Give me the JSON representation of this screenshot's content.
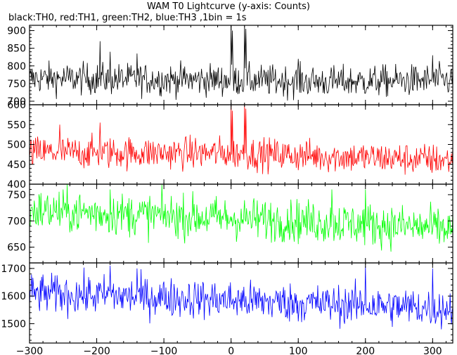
{
  "title": "WAM T0 Lightcurve (y-axis: Counts)",
  "subtitle": "black:TH0, red:TH1, green:TH2, blue:TH3 ,1bin = 1s",
  "chart_data": {
    "type": "line",
    "title": "WAM T0 Lightcurve (y-axis: Counts)",
    "subtitle": "black:TH0, red:TH1, green:TH2, blue:TH3 ,1bin = 1s",
    "xlim": [
      -300,
      330
    ],
    "xticks": [
      -300,
      -200,
      -100,
      0,
      100,
      200,
      300
    ],
    "x_tick_labels": [
      "−300",
      "−200",
      "−100",
      "0",
      "100",
      "200",
      "300"
    ],
    "grid": false,
    "panels": [
      {
        "name": "TH0",
        "color": "#000000",
        "ylim": [
          690,
          915
        ],
        "yticks": [
          700,
          750,
          800,
          850,
          900
        ],
        "baseline": [
          [
            -300,
            765
          ],
          [
            0,
            760
          ],
          [
            150,
            755
          ],
          [
            330,
            760
          ]
        ],
        "noise": 22,
        "spikes": [
          [
            -195,
            870
          ],
          [
            -180,
            840
          ],
          [
            -140,
            835
          ],
          [
            0,
            915
          ],
          [
            2,
            900
          ],
          [
            20,
            915
          ],
          [
            22,
            905
          ],
          [
            100,
            820
          ],
          [
            300,
            830
          ]
        ]
      },
      {
        "name": "TH1",
        "color": "#ff0000",
        "ylim": [
          400,
          600
        ],
        "yticks": [
          400,
          450,
          500,
          550,
          600
        ],
        "baseline": [
          [
            -300,
            480
          ],
          [
            0,
            478
          ],
          [
            150,
            470
          ],
          [
            330,
            460
          ]
        ],
        "noise": 20,
        "spikes": [
          [
            -255,
            550
          ],
          [
            -195,
            555
          ],
          [
            0,
            600
          ],
          [
            2,
            585
          ],
          [
            20,
            600
          ],
          [
            22,
            590
          ]
        ]
      },
      {
        "name": "TH2",
        "color": "#00ff00",
        "ylim": [
          620,
          770
        ],
        "yticks": [
          650,
          700,
          750
        ],
        "baseline": [
          [
            -300,
            720
          ],
          [
            -100,
            710
          ],
          [
            100,
            700
          ],
          [
            330,
            685
          ]
        ],
        "noise": 20,
        "spikes": [
          [
            -250,
            760
          ],
          [
            -180,
            760
          ],
          [
            150,
            760
          ],
          [
            200,
            760
          ]
        ]
      },
      {
        "name": "TH3",
        "color": "#0000ff",
        "ylim": [
          1430,
          1720
        ],
        "yticks": [
          1500,
          1600,
          1700
        ],
        "baseline": [
          [
            -300,
            1610
          ],
          [
            -100,
            1595
          ],
          [
            100,
            1575
          ],
          [
            330,
            1555
          ]
        ],
        "noise": 35,
        "spikes": [
          [
            -180,
            1710
          ],
          [
            -140,
            1700
          ],
          [
            200,
            1710
          ],
          [
            300,
            1700
          ]
        ]
      }
    ]
  }
}
